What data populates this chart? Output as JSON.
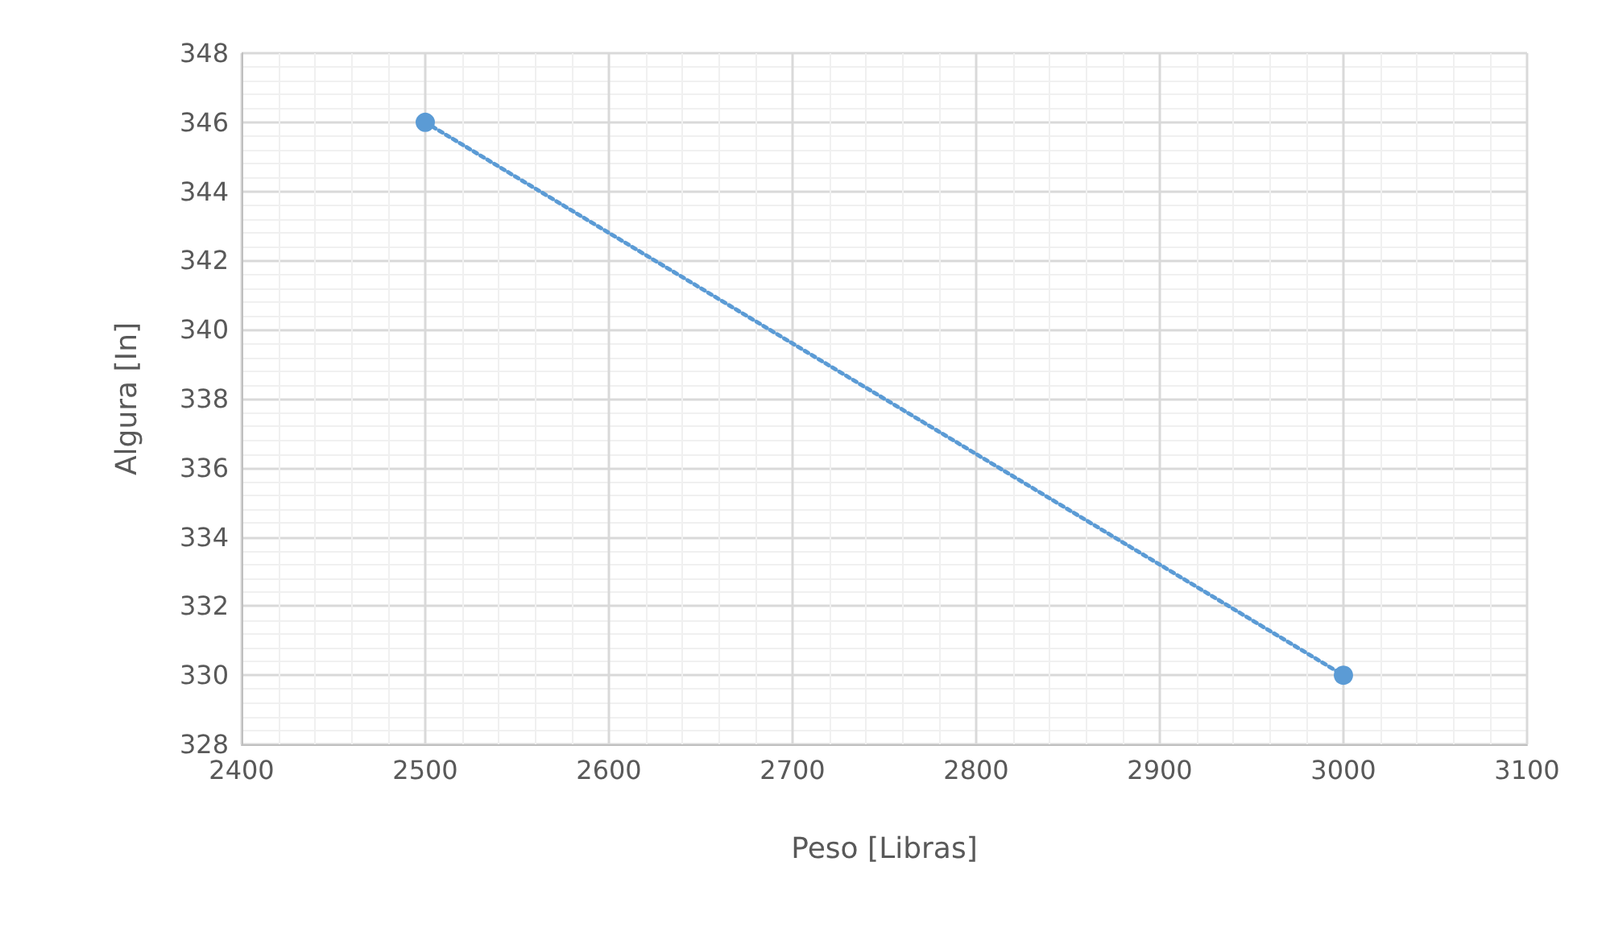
{
  "chart_data": {
    "type": "line",
    "xlabel": "Peso [Libras]",
    "ylabel": "Algura [In]",
    "series": [
      {
        "color": "#5b9bd5",
        "x": [
          2500,
          3000
        ],
        "values": [
          346,
          330
        ],
        "marker": "circle",
        "line_style": "dotted"
      }
    ],
    "xlim": [
      2400,
      3100
    ],
    "xticks": [
      2400,
      2500,
      2600,
      2700,
      2800,
      2900,
      3000,
      3100
    ],
    "ylim": [
      328,
      348
    ],
    "yticks": [
      328,
      330,
      332,
      334,
      336,
      338,
      340,
      342,
      344,
      346,
      348
    ],
    "grid": true
  }
}
